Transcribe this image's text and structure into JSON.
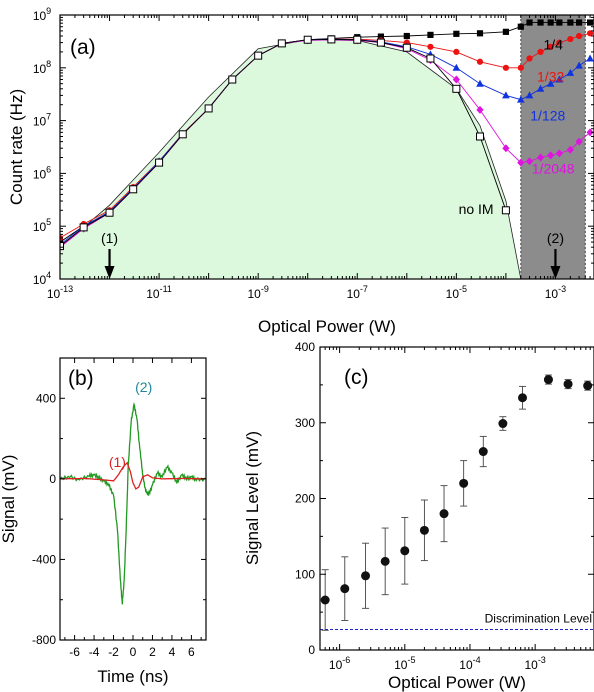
{
  "chart_data": [
    {
      "id": "a",
      "type": "line",
      "panel_label": "(a)",
      "xlabel": "Optical Power (W)",
      "ylabel": "Count rate (Hz)",
      "xscale": "log",
      "yscale": "log",
      "xlim": [
        1e-13,
        0.006
      ],
      "ylim": [
        10000,
        1000000000
      ],
      "xticks": [
        1e-13,
        1e-11,
        1e-09,
        1e-07,
        1e-05,
        0.001
      ],
      "xtick_labels": [
        {
          "base": "10",
          "exp": "-13"
        },
        {
          "base": "10",
          "exp": "-11"
        },
        {
          "base": "10",
          "exp": "-9"
        },
        {
          "base": "10",
          "exp": "-7"
        },
        {
          "base": "10",
          "exp": "-5"
        },
        {
          "base": "10",
          "exp": "-3"
        }
      ],
      "yticks": [
        10000,
        100000,
        1000000,
        10000000,
        100000000,
        1000000000
      ],
      "ytick_labels": [
        {
          "base": "10",
          "exp": "4"
        },
        {
          "base": "10",
          "exp": "5"
        },
        {
          "base": "10",
          "exp": "6"
        },
        {
          "base": "10",
          "exp": "7"
        },
        {
          "base": "10",
          "exp": "8"
        },
        {
          "base": "10",
          "exp": "9"
        }
      ],
      "shaded_region": {
        "x": [
          0.0002,
          0.004
        ],
        "color": "#8c8c8c"
      },
      "fill_color": "#ddf9dd",
      "fill_curve": {
        "name": "no IM",
        "x": [
          1e-13,
          1e-12,
          1e-11,
          1e-10,
          1e-09,
          1e-08,
          1e-07,
          1e-06,
          1e-05,
          3e-05,
          0.0001,
          0.0002
        ],
        "y": [
          40000,
          250000,
          2500000,
          28000000,
          230000000,
          340000000,
          330000000,
          200000000,
          40000000,
          8000000,
          300000,
          10000
        ]
      },
      "series": [
        {
          "name": "1/4",
          "color": "#000000",
          "marker": "square-filled",
          "x": [
            1e-13,
            3e-13,
            1e-12,
            3e-12,
            1e-11,
            3e-11,
            1e-10,
            3e-10,
            1e-09,
            3e-09,
            1e-08,
            3e-08,
            1e-07,
            3e-07,
            1e-06,
            3e-06,
            1e-05,
            3e-05,
            0.0001,
            0.0002,
            0.0003,
            0.0005,
            0.0008,
            0.0012,
            0.002,
            0.003,
            0.005
          ],
          "y": [
            50000,
            100000,
            180000,
            500000,
            1600000,
            5500000,
            17000000,
            60000000,
            170000000,
            290000000,
            340000000,
            360000000,
            380000000,
            390000000,
            400000000,
            420000000,
            440000000,
            450000000,
            480000000,
            600000000,
            720000000,
            720000000,
            720000000,
            720000000,
            720000000,
            720000000,
            720000000
          ]
        },
        {
          "name": "1/32",
          "color": "#ee1111",
          "marker": "circle",
          "x": [
            1e-13,
            3e-13,
            1e-12,
            3e-12,
            1e-11,
            3e-11,
            1e-10,
            3e-10,
            1e-09,
            3e-09,
            1e-08,
            3e-08,
            1e-07,
            3e-07,
            1e-06,
            3e-06,
            1e-05,
            3e-05,
            0.0001,
            0.0002,
            0.0003,
            0.0005,
            0.0008,
            0.0012,
            0.002,
            0.003,
            0.005
          ],
          "y": [
            60000,
            110000,
            200000,
            550000,
            1700000,
            5700000,
            17000000,
            60000000,
            170000000,
            290000000,
            340000000,
            350000000,
            350000000,
            330000000,
            300000000,
            250000000,
            200000000,
            130000000,
            100000000,
            100000000,
            150000000,
            200000000,
            250000000,
            300000000,
            350000000,
            400000000,
            450000000
          ]
        },
        {
          "name": "1/128",
          "color": "#1133dd",
          "marker": "triangle",
          "x": [
            1e-13,
            3e-13,
            1e-12,
            3e-12,
            1e-11,
            3e-11,
            1e-10,
            3e-10,
            1e-09,
            3e-09,
            1e-08,
            3e-08,
            1e-07,
            3e-07,
            1e-06,
            3e-06,
            1e-05,
            3e-05,
            0.0001,
            0.0002,
            0.0003,
            0.0005,
            0.0008,
            0.0012,
            0.002,
            0.003,
            0.005
          ],
          "y": [
            45000,
            100000,
            190000,
            520000,
            1700000,
            5600000,
            17000000,
            60000000,
            170000000,
            290000000,
            340000000,
            350000000,
            340000000,
            310000000,
            250000000,
            180000000,
            100000000,
            50000000,
            30000000,
            25000000,
            30000000,
            40000000,
            50000000,
            60000000,
            80000000,
            110000000,
            150000000
          ]
        },
        {
          "name": "1/2048",
          "color": "#e014e0",
          "marker": "diamond",
          "x": [
            1e-13,
            3e-13,
            1e-12,
            3e-12,
            1e-11,
            3e-11,
            1e-10,
            3e-10,
            1e-09,
            3e-09,
            1e-08,
            3e-08,
            1e-07,
            3e-07,
            1e-06,
            3e-06,
            1e-05,
            3e-05,
            0.0001,
            0.0002,
            0.0003,
            0.0005,
            0.0008,
            0.0012,
            0.002,
            0.003,
            0.005
          ],
          "y": [
            40000,
            90000,
            180000,
            500000,
            1600000,
            5500000,
            17000000,
            60000000,
            170000000,
            290000000,
            330000000,
            340000000,
            330000000,
            300000000,
            230000000,
            140000000,
            60000000,
            16000000,
            3000000,
            1600000,
            1700000,
            2000000,
            2200000,
            2400000,
            2800000,
            4000000,
            6000000
          ]
        },
        {
          "name": "no IM",
          "color": "#000000",
          "marker": "square-open",
          "x": [
            1e-13,
            3e-13,
            1e-12,
            3e-12,
            1e-11,
            3e-11,
            1e-10,
            3e-10,
            1e-09,
            3e-09,
            1e-08,
            3e-08,
            1e-07,
            3e-07,
            1e-06,
            3e-06,
            1e-05,
            3e-05,
            0.0001
          ],
          "y": [
            42000,
            95000,
            180000,
            500000,
            1600000,
            5500000,
            17000000,
            60000000,
            170000000,
            290000000,
            340000000,
            345000000,
            340000000,
            300000000,
            240000000,
            150000000,
            40000000,
            5000000,
            200000
          ]
        }
      ],
      "series_labels": [
        {
          "text": "1/4",
          "x": 0.0009,
          "y": 220000000,
          "color": "#000000"
        },
        {
          "text": "1/32",
          "x": 0.0008,
          "y": 55000000,
          "color": "#ee1111"
        },
        {
          "text": "1/128",
          "x": 0.0007,
          "y": 10000000,
          "color": "#1133dd"
        },
        {
          "text": "1/2048",
          "x": 0.0009,
          "y": 1000000,
          "color": "#e014e0"
        },
        {
          "text": "no IM",
          "x": 2.5e-05,
          "y": 170000,
          "color": "#000000"
        }
      ],
      "annotations": [
        {
          "text": "(1)",
          "x": 1e-12,
          "y": 35000
        },
        {
          "text": "(2)",
          "x": 0.001,
          "y": 35000
        }
      ]
    },
    {
      "id": "b",
      "type": "line",
      "panel_label": "(b)",
      "xlabel": "Time (ns)",
      "ylabel": "Signal (mV)",
      "xlim": [
        -7.5,
        7.5
      ],
      "ylim": [
        -800,
        600
      ],
      "xticks": [
        -6,
        -4,
        -2,
        0,
        2,
        4,
        6
      ],
      "xtick_labels": [
        "-6",
        "-4",
        "-2",
        "0",
        "2",
        "4",
        "6"
      ],
      "yticks": [
        -800,
        -400,
        0,
        400
      ],
      "ytick_labels": [
        "-800",
        "-400",
        "0",
        "400"
      ],
      "series": [
        {
          "name": "(2)",
          "color": "#229922",
          "x": [
            -7.5,
            -6.5,
            -5.5,
            -4.5,
            -4,
            -3.5,
            -3,
            -2.5,
            -2,
            -1.6,
            -1.3,
            -1.1,
            -0.9,
            -0.7,
            -0.5,
            -0.2,
            0.1,
            0.4,
            0.7,
            1,
            1.3,
            1.6,
            2,
            2.5,
            3,
            3.5,
            4,
            4.5,
            5,
            5.5,
            6,
            6.5,
            7.5
          ],
          "y": [
            0,
            10,
            -5,
            15,
            20,
            5,
            -10,
            -30,
            -80,
            -250,
            -500,
            -620,
            -500,
            -250,
            50,
            280,
            370,
            300,
            150,
            20,
            -60,
            -80,
            -30,
            30,
            10,
            60,
            30,
            -20,
            20,
            0,
            10,
            -5,
            0
          ]
        },
        {
          "name": "(1)",
          "color": "#dd2222",
          "x": [
            -7.5,
            -5,
            -3,
            -2,
            -1.5,
            -1,
            -0.6,
            -0.3,
            0,
            0.3,
            0.6,
            1,
            1.5,
            2,
            3,
            5,
            7.5
          ],
          "y": [
            0,
            2,
            -5,
            -10,
            20,
            60,
            80,
            40,
            -20,
            -50,
            -40,
            10,
            20,
            5,
            0,
            2,
            0
          ]
        }
      ],
      "annotations": [
        {
          "text": "(2)",
          "x": 1.1,
          "y": 430,
          "color": "#228899"
        },
        {
          "text": "(1)",
          "x": -1.6,
          "y": 60,
          "color": "#dd2222"
        }
      ]
    },
    {
      "id": "c",
      "type": "scatter",
      "panel_label": "(c)",
      "xlabel": "Optical Power (W)",
      "ylabel": "Signal Level (mV)",
      "xscale": "log",
      "xlim": [
        5e-07,
        0.008
      ],
      "ylim": [
        0,
        400
      ],
      "xticks": [
        1e-06,
        1e-05,
        0.0001,
        0.001
      ],
      "xtick_labels": [
        {
          "base": "10",
          "exp": "-6"
        },
        {
          "base": "10",
          "exp": "-5"
        },
        {
          "base": "10",
          "exp": "-4"
        },
        {
          "base": "10",
          "exp": "-3"
        }
      ],
      "yticks": [
        0,
        100,
        200,
        300,
        400
      ],
      "ytick_labels": [
        "0",
        "100",
        "200",
        "300",
        "400"
      ],
      "points": [
        {
          "x": 6e-07,
          "y": 66,
          "err": 40
        },
        {
          "x": 1.2e-06,
          "y": 81,
          "err": 42
        },
        {
          "x": 2.5e-06,
          "y": 98,
          "err": 43
        },
        {
          "x": 5e-06,
          "y": 117,
          "err": 44
        },
        {
          "x": 1e-05,
          "y": 131,
          "err": 44
        },
        {
          "x": 2e-05,
          "y": 158,
          "err": 40
        },
        {
          "x": 4e-05,
          "y": 180,
          "err": 37
        },
        {
          "x": 8e-05,
          "y": 220,
          "err": 30
        },
        {
          "x": 0.00016,
          "y": 262,
          "err": 20
        },
        {
          "x": 0.00032,
          "y": 299,
          "err": 9
        },
        {
          "x": 0.00064,
          "y": 333,
          "err": 15
        },
        {
          "x": 0.0016,
          "y": 357,
          "err": 6
        },
        {
          "x": 0.0032,
          "y": 351,
          "err": 6
        },
        {
          "x": 0.0064,
          "y": 349,
          "err": 6
        }
      ],
      "discrimination_level": {
        "label": "Discrimination Level",
        "y": 27,
        "color": "#2222cc"
      }
    }
  ]
}
